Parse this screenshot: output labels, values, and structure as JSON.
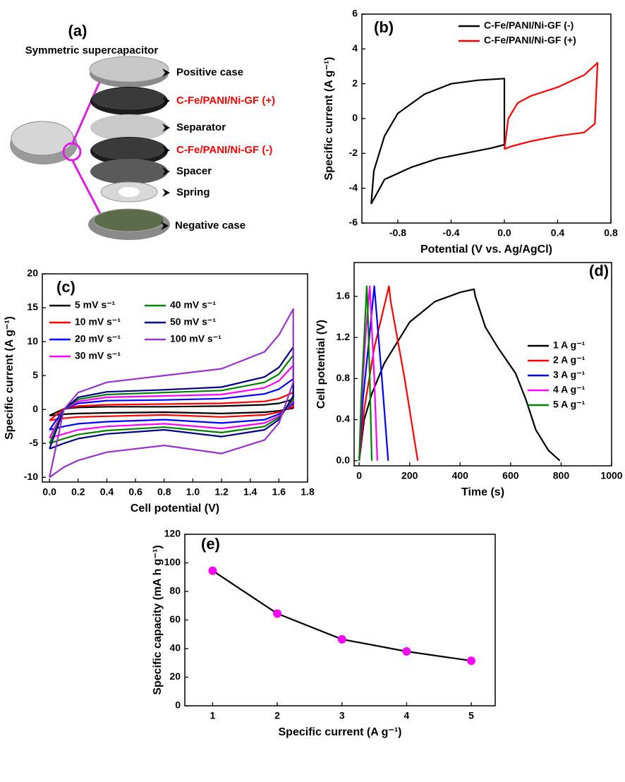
{
  "chart_data": [
    {
      "type": "diagram",
      "title": "(a)",
      "subtitle": "Symmetric supercapacitor",
      "labels": [
        {
          "text": "Positive case",
          "color": "#000000"
        },
        {
          "text": "C-Fe/PANI/Ni-GF (+)",
          "color": "#ff0000"
        },
        {
          "text": "Separator",
          "color": "#000000"
        },
        {
          "text": "C-Fe/PANI/Ni-GF (-)",
          "color": "#ff0000"
        },
        {
          "text": "Spacer",
          "color": "#000000"
        },
        {
          "text": "Spring",
          "color": "#000000"
        },
        {
          "text": "Negative case",
          "color": "#000000"
        }
      ]
    },
    {
      "type": "line",
      "title": "(b)",
      "xlabel": "Potential (V vs. Ag/AgCl)",
      "ylabel": "Specific current (A g⁻¹)",
      "xlim": [
        -1.07,
        0.8
      ],
      "ylim": [
        -6,
        6
      ],
      "xticks": [
        -0.8,
        -0.4,
        {
          "value": 0,
          "label": "0.0"
        },
        0.4,
        0.8
      ],
      "yticks": [
        -6,
        -4,
        -2,
        0,
        2,
        4,
        6
      ],
      "grid": false,
      "legend": "upper right",
      "series": [
        {
          "name": "C-Fe/PANI/Ni-GF (-)",
          "color": "#000000",
          "x": [
            -1,
            -0.98,
            -0.9,
            -0.8,
            -0.6,
            -0.4,
            -0.2,
            0,
            0,
            -0.1,
            -0.3,
            -0.5,
            -0.7,
            -0.9,
            -1
          ],
          "values": [
            -4.9,
            -3,
            -1,
            0.3,
            1.4,
            2,
            2.2,
            2.3,
            -1.5,
            -1.7,
            -2,
            -2.3,
            -2.8,
            -3.5,
            -4.9
          ]
        },
        {
          "name": "C-Fe/PANI/Ni-GF (+)",
          "color": "#ff0000",
          "x": [
            0,
            0.03,
            0.1,
            0.2,
            0.4,
            0.6,
            0.7,
            0.68,
            0.6,
            0.4,
            0.2,
            0.05,
            0
          ],
          "values": [
            -1.75,
            0,
            0.9,
            1.3,
            1.8,
            2.5,
            3.2,
            -0.3,
            -0.8,
            -1,
            -1.3,
            -1.6,
            -1.75
          ]
        }
      ]
    },
    {
      "type": "line",
      "title": "(c)",
      "xlabel": "Cell potential (V)",
      "ylabel": "Specific current (A g⁻¹)",
      "xlim": [
        -0.05,
        1.8
      ],
      "ylim": [
        -10.7,
        20
      ],
      "xticks": [
        {
          "value": 0,
          "label": "0.0"
        },
        0.2,
        0.4,
        0.6,
        0.8,
        {
          "value": 1,
          "label": "1.0"
        },
        1.2,
        1.4,
        1.6,
        1.8
      ],
      "yticks": [
        -10,
        -5,
        0,
        5,
        10,
        15,
        20
      ],
      "grid": false,
      "legend": "upper left",
      "series": [
        {
          "name": "5 mV s⁻¹",
          "color": "#000000",
          "x": [
            0,
            0.1,
            0.2,
            0.4,
            0.8,
            1.2,
            1.5,
            1.6,
            1.7,
            1.7,
            1.6,
            1.5,
            1.2,
            0.8,
            0.4,
            0.2,
            0.1,
            0
          ],
          "values": [
            -0.9,
            0.1,
            0.3,
            0.4,
            0.4,
            0.5,
            0.7,
            0.9,
            1.5,
            0.2,
            -0.2,
            -0.4,
            -0.6,
            -0.4,
            -0.5,
            -0.6,
            -0.7,
            -0.9
          ]
        },
        {
          "name": "10 mV s⁻¹",
          "color": "#ff0000",
          "x": [
            0,
            0.1,
            0.2,
            0.4,
            0.8,
            1.2,
            1.5,
            1.6,
            1.7,
            1.7,
            1.6,
            1.5,
            1.2,
            0.8,
            0.4,
            0.2,
            0.1,
            0
          ],
          "values": [
            -1.6,
            0.1,
            0.5,
            0.7,
            0.8,
            0.9,
            1.2,
            1.6,
            2.5,
            0.4,
            -0.4,
            -0.8,
            -1.1,
            -0.8,
            -1,
            -1.1,
            -1.3,
            -1.6
          ]
        },
        {
          "name": "20 mV s⁻¹",
          "color": "#0000ff",
          "x": [
            0,
            0.1,
            0.2,
            0.4,
            0.8,
            1.2,
            1.5,
            1.6,
            1.7,
            1.7,
            1.6,
            1.5,
            1.2,
            0.8,
            0.4,
            0.2,
            0.1,
            0
          ],
          "values": [
            -3,
            0,
            0.9,
            1.3,
            1.4,
            1.6,
            2.3,
            3,
            4.5,
            0.8,
            -0.7,
            -1.5,
            -2,
            -1.5,
            -1.8,
            -2.1,
            -2.5,
            -3
          ]
        },
        {
          "name": "30 mV s⁻¹",
          "color": "#ff00ff",
          "x": [
            0,
            0.1,
            0.2,
            0.4,
            0.8,
            1.2,
            1.5,
            1.6,
            1.7,
            1.7,
            1.6,
            1.5,
            1.2,
            0.8,
            0.4,
            0.2,
            0.1,
            0
          ],
          "values": [
            -4.2,
            0,
            1.2,
            1.8,
            2,
            2.2,
            3.2,
            4.2,
            6.5,
            1.2,
            -1,
            -2,
            -2.8,
            -2.1,
            -2.5,
            -3,
            -3.6,
            -4.2
          ]
        },
        {
          "name": "40 mV s⁻¹",
          "color": "#008000",
          "x": [
            0,
            0.1,
            0.2,
            0.4,
            0.8,
            1.2,
            1.5,
            1.6,
            1.7,
            1.7,
            1.6,
            1.5,
            1.2,
            0.8,
            0.4,
            0.2,
            0.1,
            0
          ],
          "values": [
            -5,
            0,
            1.5,
            2.2,
            2.5,
            2.8,
            4,
            5.2,
            8,
            1.5,
            -1.2,
            -2.5,
            -3.4,
            -2.6,
            -3.1,
            -3.7,
            -4.3,
            -5
          ]
        },
        {
          "name": "50 mV s⁻¹",
          "color": "#000080",
          "x": [
            0,
            0.1,
            0.2,
            0.4,
            0.8,
            1.2,
            1.5,
            1.6,
            1.7,
            1.7,
            1.6,
            1.5,
            1.2,
            0.8,
            0.4,
            0.2,
            0.1,
            0
          ],
          "values": [
            -5.8,
            0,
            1.8,
            2.6,
            2.9,
            3.3,
            4.8,
            6.2,
            9.2,
            2,
            -1.5,
            -3,
            -4,
            -3,
            -3.6,
            -4.3,
            -5,
            -5.8
          ]
        },
        {
          "name": "100 mV s⁻¹",
          "color": "#9932cc",
          "x": [
            0,
            0.1,
            0.2,
            0.4,
            0.8,
            1.2,
            1.5,
            1.6,
            1.7,
            1.7,
            1.6,
            1.5,
            1.2,
            0.8,
            0.4,
            0.2,
            0.1,
            0
          ],
          "values": [
            -10,
            0,
            2.5,
            4,
            5,
            6,
            8.5,
            11,
            14.8,
            4,
            -2,
            -4.5,
            -6.5,
            -5.3,
            -6.3,
            -7.5,
            -8.5,
            -10
          ]
        }
      ]
    },
    {
      "type": "line",
      "title": "(d)",
      "xlabel": "Time (s)",
      "ylabel": "Cell potential (V)",
      "xlim": [
        -20,
        1000
      ],
      "ylim": [
        -0.05,
        1.93
      ],
      "xticks": [
        0,
        200,
        400,
        600,
        800,
        1000
      ],
      "yticks": [
        {
          "value": 0,
          "label": "0.0"
        },
        0.4,
        0.8,
        1.2,
        1.6
      ],
      "grid": false,
      "legend": "center right",
      "series": [
        {
          "name": "1 A g⁻¹",
          "color": "#000000",
          "x": [
            0,
            20,
            50,
            100,
            200,
            300,
            400,
            455,
            460,
            500,
            550,
            620,
            660,
            700,
            750,
            795
          ],
          "values": [
            0,
            0.4,
            0.65,
            0.95,
            1.35,
            1.55,
            1.64,
            1.67,
            1.6,
            1.3,
            1.1,
            0.85,
            0.6,
            0.3,
            0.1,
            0
          ]
        },
        {
          "name": "2 A g⁻¹",
          "color": "#ff0000",
          "x": [
            0,
            20,
            60,
            118,
            125,
            180,
            232
          ],
          "values": [
            0,
            0.5,
            1.1,
            1.7,
            1.55,
            0.8,
            0
          ]
        },
        {
          "name": "3 A g⁻¹",
          "color": "#0000ff",
          "x": [
            0,
            15,
            40,
            60,
            65,
            90,
            115
          ],
          "values": [
            0,
            0.6,
            1.2,
            1.7,
            1.55,
            0.8,
            0
          ]
        },
        {
          "name": "4 A g⁻¹",
          "color": "#ff00ff",
          "x": [
            0,
            10,
            25,
            42,
            45,
            60,
            72
          ],
          "values": [
            0,
            0.6,
            1.2,
            1.7,
            1.55,
            0.8,
            0
          ]
        },
        {
          "name": "5 A g⁻¹",
          "color": "#008000",
          "x": [
            0,
            8,
            20,
            30,
            33,
            42,
            50
          ],
          "values": [
            0,
            0.6,
            1.2,
            1.7,
            1.55,
            0.8,
            0
          ]
        }
      ]
    },
    {
      "type": "line",
      "title": "(e)",
      "xlabel": "Specific current (A g⁻¹)",
      "ylabel": "Specific capacity (mA h g⁻¹)",
      "xlim": [
        0.57,
        5.37
      ],
      "ylim": [
        0,
        120
      ],
      "xticks": [
        1,
        2,
        3,
        4,
        5
      ],
      "yticks": [
        0,
        20,
        40,
        60,
        80,
        100,
        120
      ],
      "grid": false,
      "series": [
        {
          "color": "#000000",
          "marker_color": "#ff00ff",
          "x": [
            1,
            2,
            3,
            4,
            5
          ],
          "values": [
            94.5,
            64.5,
            46.5,
            38,
            31.5
          ]
        }
      ]
    }
  ]
}
